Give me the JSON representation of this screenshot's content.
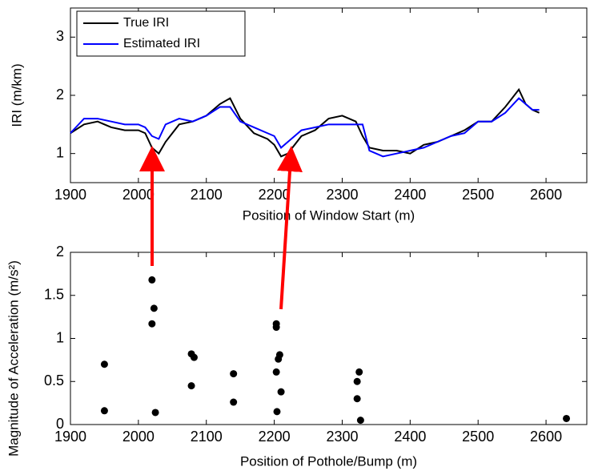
{
  "chart_data": [
    {
      "type": "line",
      "xlabel": "Position of Window Start (m)",
      "ylabel": "IRI (m/km)",
      "x": [
        1900,
        1920,
        1940,
        1960,
        1980,
        2000,
        2010,
        2020,
        2030,
        2040,
        2060,
        2080,
        2100,
        2120,
        2135,
        2150,
        2170,
        2190,
        2200,
        2210,
        2220,
        2240,
        2260,
        2280,
        2300,
        2320,
        2330,
        2340,
        2360,
        2380,
        2400,
        2420,
        2440,
        2460,
        2480,
        2500,
        2520,
        2540,
        2560,
        2570,
        2580,
        2590
      ],
      "series": [
        {
          "name": "True IRI",
          "color": "#000000",
          "values": [
            1.35,
            1.5,
            1.55,
            1.45,
            1.4,
            1.4,
            1.35,
            1.1,
            1.0,
            1.2,
            1.5,
            1.55,
            1.65,
            1.85,
            1.95,
            1.6,
            1.35,
            1.25,
            1.15,
            0.95,
            1.0,
            1.3,
            1.4,
            1.6,
            1.65,
            1.55,
            1.3,
            1.1,
            1.05,
            1.05,
            1.0,
            1.15,
            1.2,
            1.3,
            1.4,
            1.55,
            1.55,
            1.8,
            2.1,
            1.85,
            1.75,
            1.7
          ]
        },
        {
          "name": "Estimated IRI",
          "color": "#0000ff",
          "values": [
            1.35,
            1.6,
            1.6,
            1.55,
            1.5,
            1.5,
            1.45,
            1.3,
            1.25,
            1.5,
            1.6,
            1.55,
            1.65,
            1.8,
            1.8,
            1.55,
            1.45,
            1.35,
            1.3,
            1.1,
            1.2,
            1.4,
            1.45,
            1.5,
            1.5,
            1.5,
            1.5,
            1.05,
            0.95,
            1.0,
            1.05,
            1.1,
            1.2,
            1.3,
            1.35,
            1.55,
            1.55,
            1.7,
            1.95,
            1.85,
            1.75,
            1.75
          ]
        }
      ],
      "xlim": [
        1900,
        2660
      ],
      "xticks": [
        1900,
        2000,
        2100,
        2200,
        2300,
        2400,
        2500,
        2600
      ],
      "ylim": [
        0.5,
        3.5
      ],
      "yticks": [
        1,
        2,
        3
      ],
      "legend": "upper-left"
    },
    {
      "type": "scatter",
      "xlabel": "Position of Pothole/Bump (m)",
      "ylabel": "Magnitude of Acceleration (m/s²)",
      "color": "#000000",
      "x": [
        1950,
        1950,
        2020,
        2023,
        2020,
        2025,
        2078,
        2082,
        2078,
        2140,
        2140,
        2203,
        2203,
        2208,
        2206,
        2203,
        2210,
        2204,
        2325,
        2322,
        2322,
        2327,
        2630
      ],
      "values": [
        0.7,
        0.16,
        1.68,
        1.35,
        1.17,
        0.14,
        0.82,
        0.78,
        0.45,
        0.59,
        0.26,
        1.17,
        1.13,
        0.81,
        0.76,
        0.61,
        0.38,
        0.15,
        0.61,
        0.5,
        0.3,
        0.05,
        0.07
      ],
      "xlim": [
        1900,
        2660
      ],
      "xticks": [
        1900,
        2000,
        2100,
        2200,
        2300,
        2400,
        2500,
        2600
      ],
      "ylim": [
        0,
        2
      ],
      "yticks": [
        0,
        0.5,
        1,
        1.5,
        2
      ]
    }
  ]
}
